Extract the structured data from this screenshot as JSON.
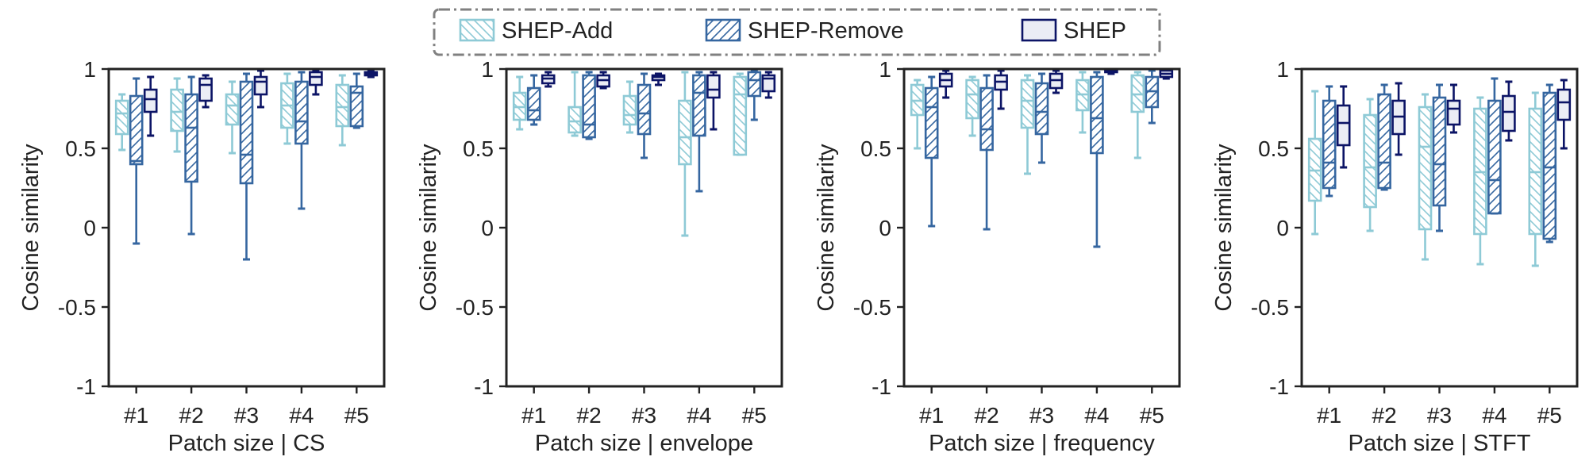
{
  "legend": {
    "placement": "top-center",
    "items": [
      {
        "label": "SHEP-Add",
        "color": "#8ecad6",
        "hatch": "back-diagonal"
      },
      {
        "label": "SHEP-Remove",
        "color": "#3566a0",
        "hatch": "diagonal"
      },
      {
        "label": "SHEP",
        "color": "#0c1466",
        "hatch": "none"
      }
    ]
  },
  "chart_data": [
    {
      "type": "box",
      "xlabel": "Patch size | CS",
      "ylabel": "Cosine similarity",
      "ylim": [
        -1,
        1
      ],
      "yticks": [
        "1",
        "0.5",
        "0",
        "-0.5",
        "-1"
      ],
      "categories": [
        "#1",
        "#2",
        "#3",
        "#4",
        "#5"
      ],
      "series": [
        {
          "name": "SHEP-Add",
          "boxes": [
            {
              "min": 0.49,
              "q1": 0.59,
              "median": 0.72,
              "q3": 0.8,
              "max": 0.84
            },
            {
              "min": 0.48,
              "q1": 0.61,
              "median": 0.73,
              "q3": 0.87,
              "max": 0.94
            },
            {
              "min": 0.47,
              "q1": 0.65,
              "median": 0.77,
              "q3": 0.84,
              "max": 0.92
            },
            {
              "min": 0.53,
              "q1": 0.63,
              "median": 0.77,
              "q3": 0.91,
              "max": 0.97
            },
            {
              "min": 0.52,
              "q1": 0.64,
              "median": 0.76,
              "q3": 0.9,
              "max": 0.96
            }
          ]
        },
        {
          "name": "SHEP-Remove",
          "boxes": [
            {
              "min": -0.1,
              "q1": 0.4,
              "median": 0.42,
              "q3": 0.83,
              "max": 0.94
            },
            {
              "min": -0.04,
              "q1": 0.29,
              "median": 0.63,
              "q3": 0.84,
              "max": 0.95
            },
            {
              "min": -0.2,
              "q1": 0.28,
              "median": 0.46,
              "q3": 0.92,
              "max": 0.97
            },
            {
              "min": 0.12,
              "q1": 0.53,
              "median": 0.67,
              "q3": 0.92,
              "max": 0.98
            },
            {
              "min": 0.63,
              "q1": 0.64,
              "median": 0.85,
              "q3": 0.89,
              "max": 0.97
            }
          ]
        },
        {
          "name": "SHEP",
          "boxes": [
            {
              "min": 0.58,
              "q1": 0.73,
              "median": 0.81,
              "q3": 0.87,
              "max": 0.95
            },
            {
              "min": 0.76,
              "q1": 0.8,
              "median": 0.9,
              "q3": 0.94,
              "max": 0.96
            },
            {
              "min": 0.76,
              "q1": 0.84,
              "median": 0.92,
              "q3": 0.95,
              "max": 0.99
            },
            {
              "min": 0.84,
              "q1": 0.9,
              "median": 0.95,
              "q3": 0.98,
              "max": 0.99
            },
            {
              "min": 0.95,
              "q1": 0.96,
              "median": 0.97,
              "q3": 0.98,
              "max": 0.99
            }
          ]
        }
      ]
    },
    {
      "type": "box",
      "xlabel": "Patch size | envelope",
      "ylabel": "Cosine similarity",
      "ylim": [
        -1,
        1
      ],
      "yticks": [
        "1",
        "0.5",
        "0",
        "-0.5",
        "-1"
      ],
      "categories": [
        "#1",
        "#2",
        "#3",
        "#4",
        "#5"
      ],
      "series": [
        {
          "name": "SHEP-Add",
          "boxes": [
            {
              "min": 0.62,
              "q1": 0.68,
              "median": 0.76,
              "q3": 0.85,
              "max": 0.95
            },
            {
              "min": 0.58,
              "q1": 0.6,
              "median": 0.67,
              "q3": 0.76,
              "max": 0.98
            },
            {
              "min": 0.6,
              "q1": 0.65,
              "median": 0.71,
              "q3": 0.83,
              "max": 0.92
            },
            {
              "min": -0.05,
              "q1": 0.4,
              "median": 0.57,
              "q3": 0.8,
              "max": 0.98
            },
            {
              "min": 0.46,
              "q1": 0.46,
              "median": 0.84,
              "q3": 0.95,
              "max": 0.97
            }
          ]
        },
        {
          "name": "SHEP-Remove",
          "boxes": [
            {
              "min": 0.65,
              "q1": 0.68,
              "median": 0.74,
              "q3": 0.88,
              "max": 0.96
            },
            {
              "min": 0.56,
              "q1": 0.57,
              "median": 0.65,
              "q3": 0.96,
              "max": 0.98
            },
            {
              "min": 0.44,
              "q1": 0.59,
              "median": 0.72,
              "q3": 0.9,
              "max": 0.97
            },
            {
              "min": 0.23,
              "q1": 0.58,
              "median": 0.85,
              "q3": 0.96,
              "max": 0.98
            },
            {
              "min": 0.68,
              "q1": 0.83,
              "median": 0.93,
              "q3": 0.98,
              "max": 0.99
            }
          ]
        },
        {
          "name": "SHEP",
          "boxes": [
            {
              "min": 0.89,
              "q1": 0.91,
              "median": 0.94,
              "q3": 0.96,
              "max": 0.98
            },
            {
              "min": 0.88,
              "q1": 0.89,
              "median": 0.93,
              "q3": 0.96,
              "max": 0.98
            },
            {
              "min": 0.9,
              "q1": 0.93,
              "median": 0.95,
              "q3": 0.96,
              "max": 0.97
            },
            {
              "min": 0.62,
              "q1": 0.82,
              "median": 0.87,
              "q3": 0.96,
              "max": 0.98
            },
            {
              "min": 0.82,
              "q1": 0.86,
              "median": 0.94,
              "q3": 0.96,
              "max": 0.98
            }
          ]
        }
      ]
    },
    {
      "type": "box",
      "xlabel": "Patch size | frequency",
      "ylabel": "Cosine similarity",
      "ylim": [
        -1,
        1
      ],
      "yticks": [
        "1",
        "0.5",
        "0",
        "-0.5",
        "-1"
      ],
      "categories": [
        "#1",
        "#2",
        "#3",
        "#4",
        "#5"
      ],
      "series": [
        {
          "name": "SHEP-Add",
          "boxes": [
            {
              "min": 0.5,
              "q1": 0.71,
              "median": 0.8,
              "q3": 0.9,
              "max": 0.93
            },
            {
              "min": 0.58,
              "q1": 0.69,
              "median": 0.84,
              "q3": 0.93,
              "max": 0.95
            },
            {
              "min": 0.34,
              "q1": 0.63,
              "median": 0.8,
              "q3": 0.93,
              "max": 0.96
            },
            {
              "min": 0.6,
              "q1": 0.74,
              "median": 0.84,
              "q3": 0.93,
              "max": 0.98
            },
            {
              "min": 0.44,
              "q1": 0.73,
              "median": 0.84,
              "q3": 0.96,
              "max": 0.98
            }
          ]
        },
        {
          "name": "SHEP-Remove",
          "boxes": [
            {
              "min": 0.01,
              "q1": 0.44,
              "median": 0.76,
              "q3": 0.88,
              "max": 0.95
            },
            {
              "min": -0.01,
              "q1": 0.49,
              "median": 0.62,
              "q3": 0.88,
              "max": 0.96
            },
            {
              "min": 0.41,
              "q1": 0.59,
              "median": 0.73,
              "q3": 0.91,
              "max": 0.97
            },
            {
              "min": -0.12,
              "q1": 0.47,
              "median": 0.69,
              "q3": 0.95,
              "max": 0.98
            },
            {
              "min": 0.66,
              "q1": 0.76,
              "median": 0.86,
              "q3": 0.95,
              "max": 0.99
            }
          ]
        },
        {
          "name": "SHEP",
          "boxes": [
            {
              "min": 0.82,
              "q1": 0.89,
              "median": 0.93,
              "q3": 0.97,
              "max": 0.99
            },
            {
              "min": 0.75,
              "q1": 0.87,
              "median": 0.92,
              "q3": 0.96,
              "max": 0.99
            },
            {
              "min": 0.85,
              "q1": 0.88,
              "median": 0.93,
              "q3": 0.97,
              "max": 0.99
            },
            {
              "min": 0.97,
              "q1": 0.98,
              "median": 0.99,
              "q3": 0.99,
              "max": 1.0
            },
            {
              "min": 0.94,
              "q1": 0.95,
              "median": 0.97,
              "q3": 0.99,
              "max": 1.0
            }
          ]
        }
      ]
    },
    {
      "type": "box",
      "xlabel": "Patch size | STFT",
      "ylabel": "Cosine similarity",
      "ylim": [
        -1,
        1
      ],
      "yticks": [
        "1",
        "0.5",
        "0",
        "-0.5",
        "-1"
      ],
      "categories": [
        "#1",
        "#2",
        "#3",
        "#4",
        "#5"
      ],
      "series": [
        {
          "name": "SHEP-Add",
          "boxes": [
            {
              "min": -0.04,
              "q1": 0.17,
              "median": 0.36,
              "q3": 0.56,
              "max": 0.86
            },
            {
              "min": -0.02,
              "q1": 0.13,
              "median": 0.38,
              "q3": 0.71,
              "max": 0.81
            },
            {
              "min": -0.2,
              "q1": -0.01,
              "median": 0.51,
              "q3": 0.76,
              "max": 0.84
            },
            {
              "min": -0.23,
              "q1": -0.04,
              "median": 0.35,
              "q3": 0.75,
              "max": 0.82
            },
            {
              "min": -0.24,
              "q1": -0.04,
              "median": 0.35,
              "q3": 0.75,
              "max": 0.85
            }
          ]
        },
        {
          "name": "SHEP-Remove",
          "boxes": [
            {
              "min": 0.2,
              "q1": 0.25,
              "median": 0.41,
              "q3": 0.8,
              "max": 0.89
            },
            {
              "min": 0.24,
              "q1": 0.25,
              "median": 0.41,
              "q3": 0.84,
              "max": 0.9
            },
            {
              "min": -0.02,
              "q1": 0.14,
              "median": 0.4,
              "q3": 0.82,
              "max": 0.9
            },
            {
              "min": 0.09,
              "q1": 0.09,
              "median": 0.3,
              "q3": 0.8,
              "max": 0.94
            },
            {
              "min": -0.09,
              "q1": -0.07,
              "median": 0.38,
              "q3": 0.85,
              "max": 0.9
            }
          ]
        },
        {
          "name": "SHEP",
          "boxes": [
            {
              "min": 0.38,
              "q1": 0.52,
              "median": 0.66,
              "q3": 0.77,
              "max": 0.89
            },
            {
              "min": 0.46,
              "q1": 0.59,
              "median": 0.7,
              "q3": 0.8,
              "max": 0.91
            },
            {
              "min": 0.6,
              "q1": 0.65,
              "median": 0.75,
              "q3": 0.8,
              "max": 0.9
            },
            {
              "min": 0.55,
              "q1": 0.61,
              "median": 0.73,
              "q3": 0.83,
              "max": 0.92
            },
            {
              "min": 0.5,
              "q1": 0.68,
              "median": 0.79,
              "q3": 0.87,
              "max": 0.93
            }
          ]
        }
      ]
    }
  ]
}
